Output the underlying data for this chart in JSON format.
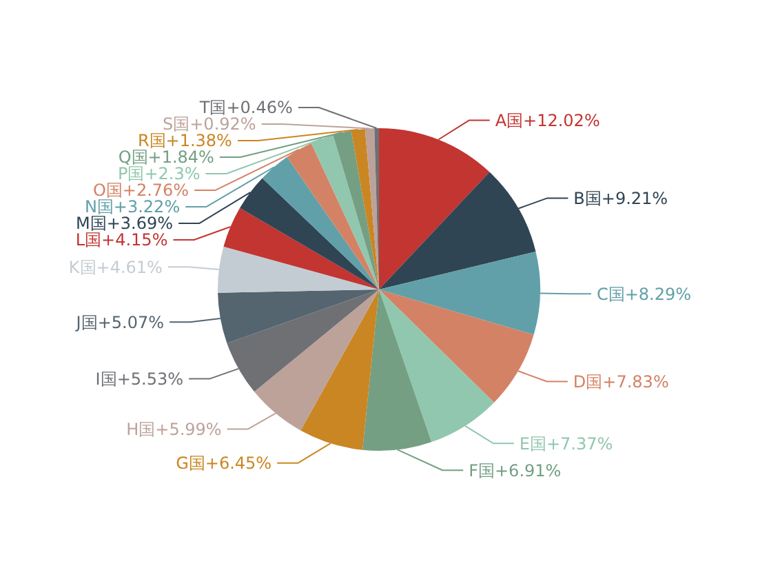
{
  "chart_data": {
    "type": "pie",
    "categories": [
      "A国",
      "B国",
      "C国",
      "D国",
      "E国",
      "F国",
      "G国",
      "H国",
      "I国",
      "J国",
      "K国",
      "L国",
      "M国",
      "N国",
      "O国",
      "P国",
      "Q国",
      "R国",
      "S国",
      "T国"
    ],
    "values": [
      12.02,
      9.21,
      8.29,
      7.83,
      7.37,
      6.91,
      6.45,
      5.99,
      5.53,
      5.07,
      4.61,
      4.15,
      3.69,
      3.22,
      2.76,
      2.3,
      1.84,
      1.38,
      0.92,
      0.46
    ],
    "value_labels": [
      "+12.02%",
      "+9.21%",
      "+8.29%",
      "+7.83%",
      "+7.37%",
      "+6.91%",
      "+6.45%",
      "+5.99%",
      "+5.53%",
      "+5.07%",
      "+4.61%",
      "+4.15%",
      "+3.69%",
      "+3.22%",
      "+2.76%",
      "+2.3%",
      "+1.84%",
      "+1.38%",
      "+0.92%",
      "+0.46%"
    ],
    "colors": [
      "#c23531",
      "#2f4554",
      "#61a0a8",
      "#d48265",
      "#91c7ae",
      "#749f83",
      "#ca8622",
      "#bda29a",
      "#6e7074",
      "#546570",
      "#c4ccd3",
      "#c23531",
      "#2f4554",
      "#61a0a8",
      "#d48265",
      "#91c7ae",
      "#749f83",
      "#ca8622",
      "#bda29a",
      "#6e7074"
    ]
  }
}
